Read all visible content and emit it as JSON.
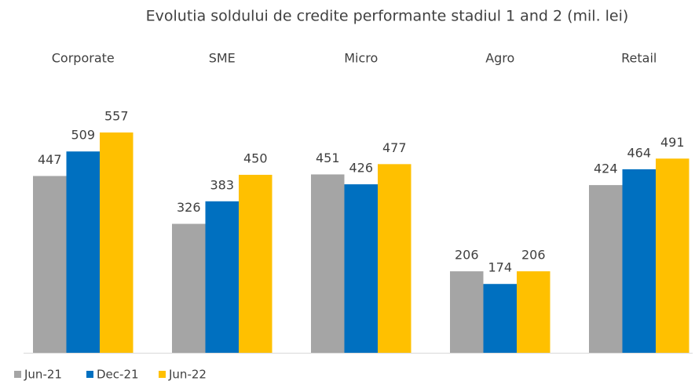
{
  "chart_data": {
    "type": "bar",
    "title": "Evolutia soldului de credite performante stadiul 1 and 2 (mil. lei)",
    "categories": [
      "Corporate",
      "SME",
      "Micro",
      "Agro",
      "Retail"
    ],
    "series": [
      {
        "name": "Jun-21",
        "color": "#a5a5a5",
        "values": [
          447,
          326,
          451,
          206,
          424
        ]
      },
      {
        "name": "Dec-21",
        "color": "#0070c0",
        "values": [
          509,
          383,
          426,
          174,
          464
        ]
      },
      {
        "name": "Jun-22",
        "color": "#ffc000",
        "values": [
          557,
          450,
          477,
          206,
          491
        ]
      }
    ],
    "legend": "bottom-left"
  }
}
